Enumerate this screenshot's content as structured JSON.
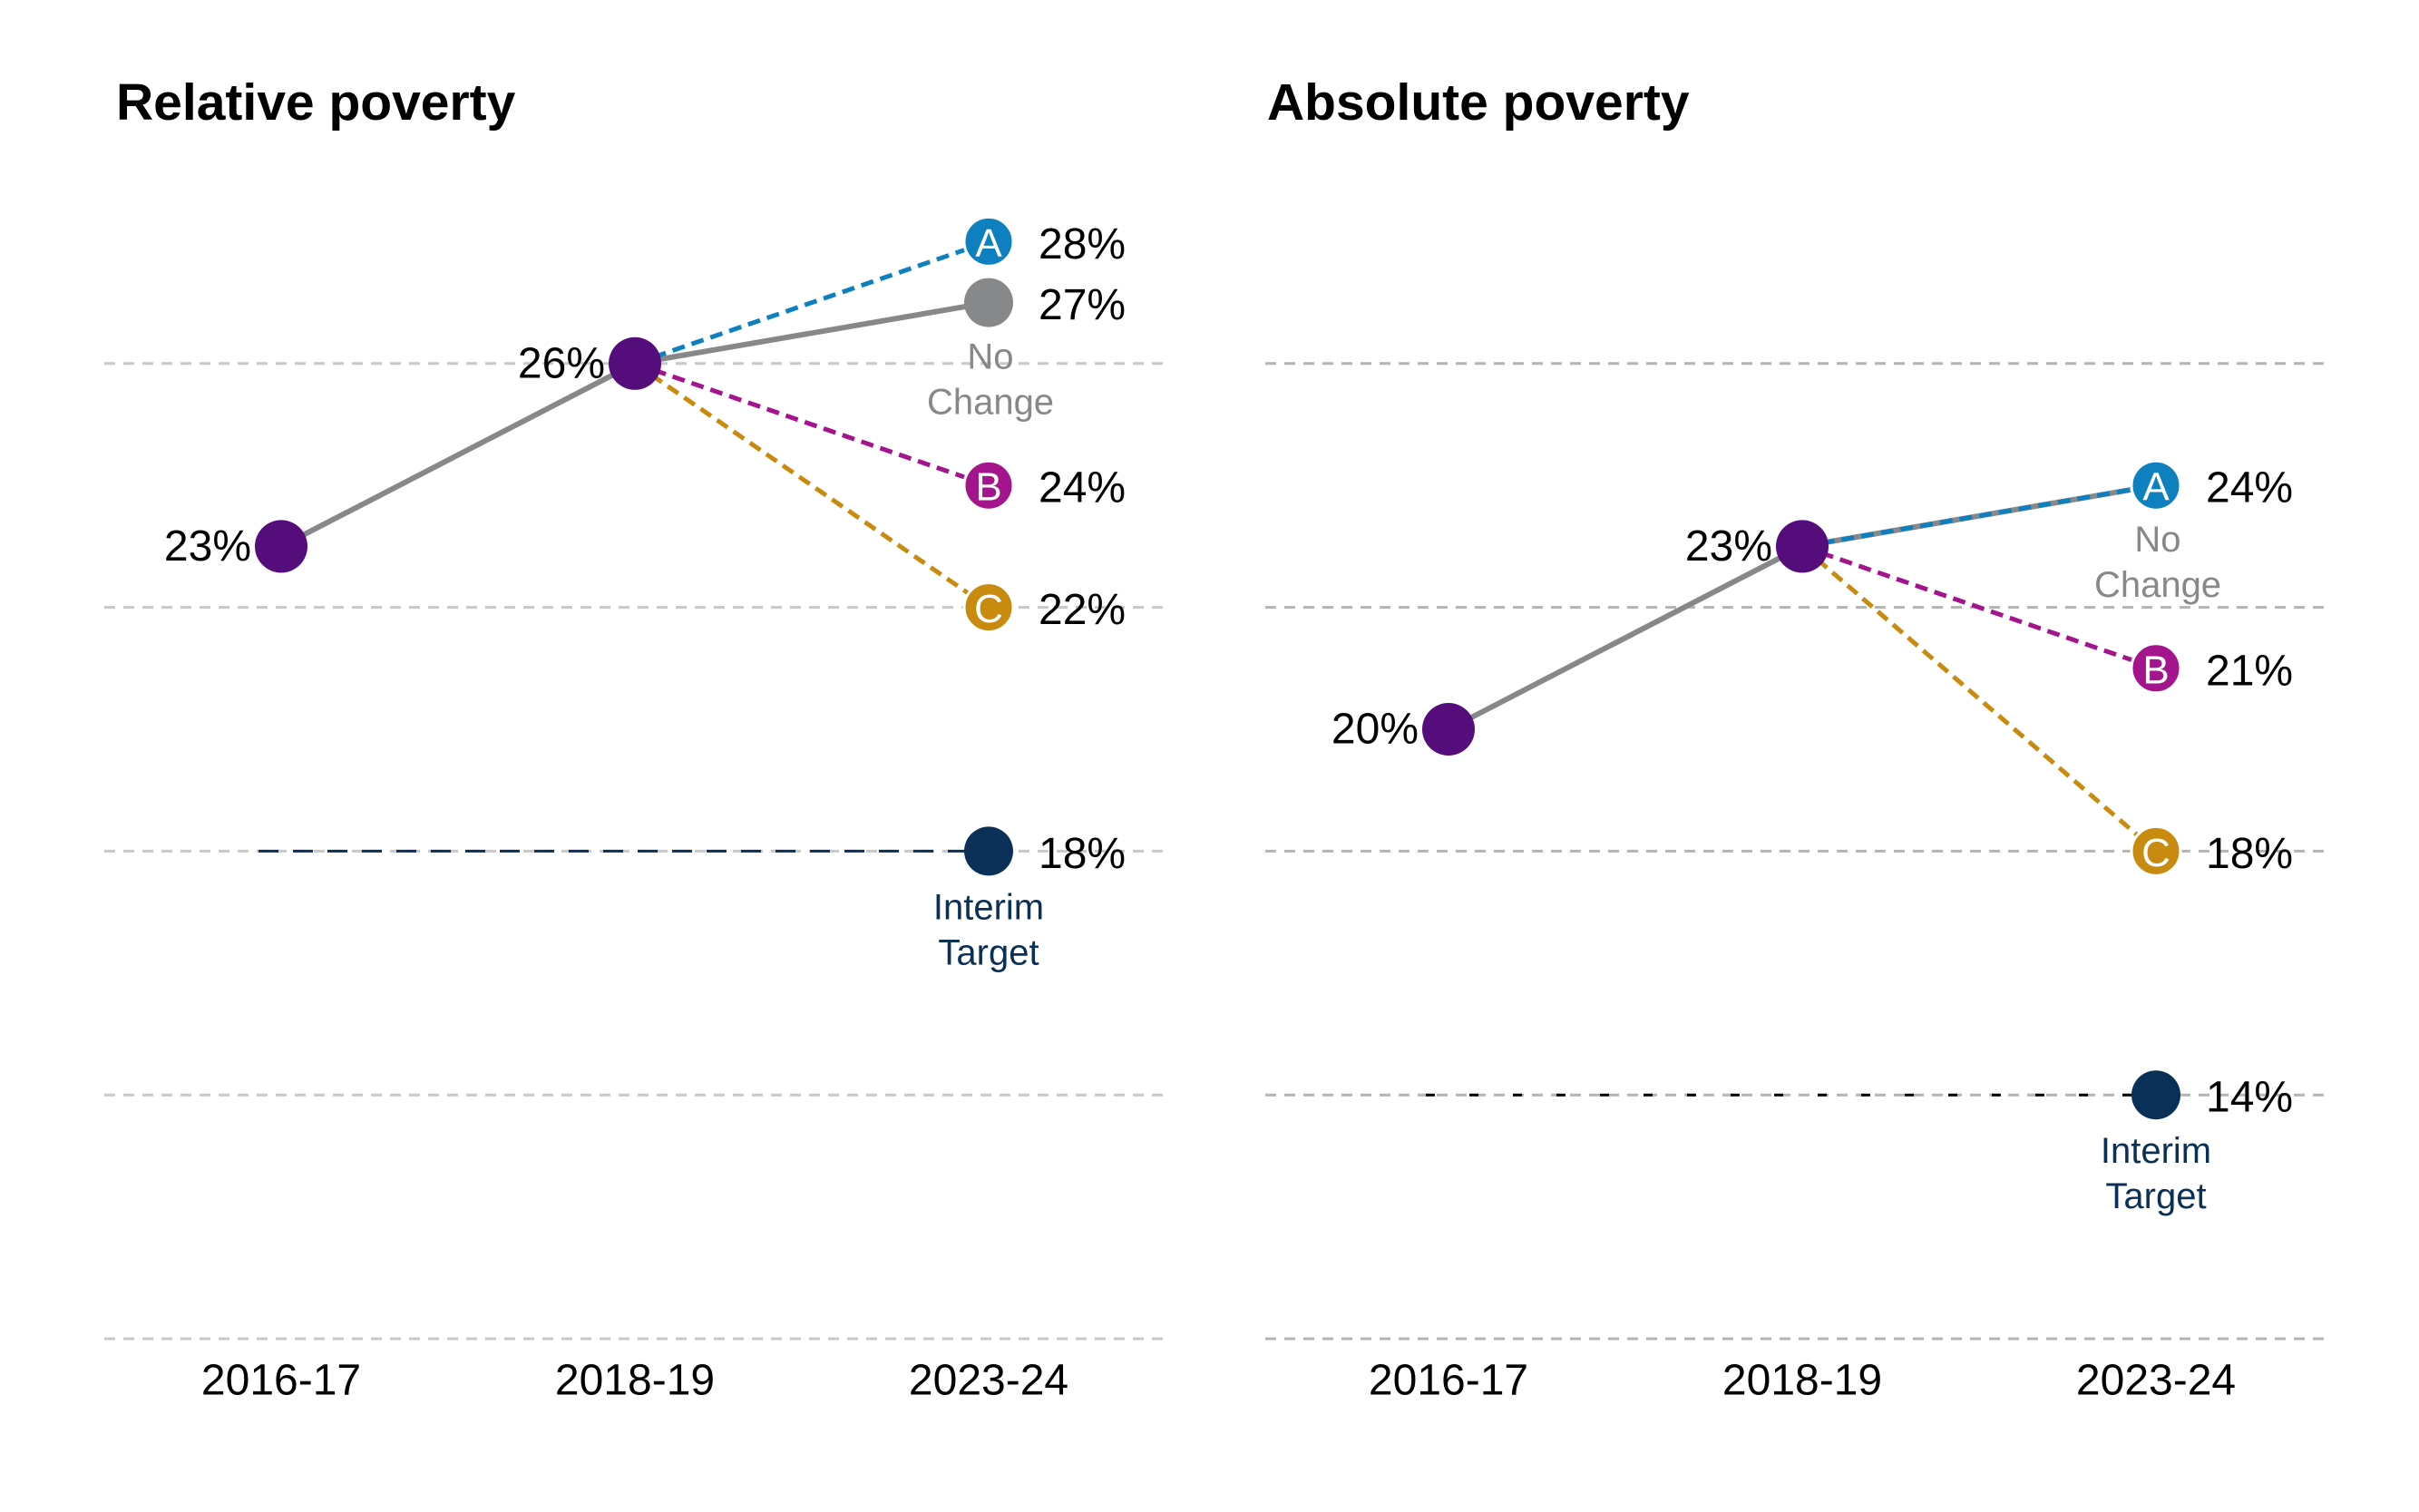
{
  "colors": {
    "actual": "#540d7a",
    "no_change": "#87888a",
    "scenario_a": "#0e7fbf",
    "scenario_b": "#a4148c",
    "scenario_c": "#c98a10",
    "target": "#0b3058",
    "grid": "#c8c8c8"
  },
  "chart_data": [
    {
      "type": "line",
      "title": "Relative poverty",
      "categories": [
        "2016-17",
        "2018-19",
        "2023-24"
      ],
      "ylim": [
        10,
        30
      ],
      "gridlines": [
        10,
        14,
        18,
        22,
        26
      ],
      "grid": true,
      "actual": {
        "points": [
          {
            "x": "2016-17",
            "y": 23,
            "label": "23%"
          },
          {
            "x": "2018-19",
            "y": 26,
            "label": "26%"
          }
        ]
      },
      "scenarios": [
        {
          "key": "no_change",
          "marker": "",
          "label": "27%",
          "from": 26,
          "y": 27,
          "note": [
            "No",
            "Change"
          ]
        },
        {
          "key": "scenario_a",
          "marker": "A",
          "label": "28%",
          "from": 26,
          "y": 28
        },
        {
          "key": "scenario_b",
          "marker": "B",
          "label": "24%",
          "from": 26,
          "y": 24
        },
        {
          "key": "scenario_c",
          "marker": "C",
          "label": "22%",
          "from": 26,
          "y": 22
        }
      ],
      "target": {
        "y": 18,
        "label": "18%",
        "note": [
          "Interim",
          "Target"
        ]
      }
    },
    {
      "type": "line",
      "title": "Absolute poverty",
      "categories": [
        "2016-17",
        "2018-19",
        "2023-24"
      ],
      "ylim": [
        10,
        30
      ],
      "gridlines": [
        10,
        14,
        18,
        22,
        26
      ],
      "grid": true,
      "actual": {
        "points": [
          {
            "x": "2016-17",
            "y": 20,
            "label": "20%"
          },
          {
            "x": "2018-19",
            "y": 23,
            "label": "23%"
          }
        ]
      },
      "scenarios": [
        {
          "key": "no_change",
          "marker": "",
          "label": "",
          "from": 23,
          "y": 24,
          "note": [
            "No",
            "Change"
          ]
        },
        {
          "key": "scenario_a",
          "marker": "A",
          "label": "24%",
          "from": 23,
          "y": 24
        },
        {
          "key": "scenario_b",
          "marker": "B",
          "label": "21%",
          "from": 23,
          "y": 21
        },
        {
          "key": "scenario_c",
          "marker": "C",
          "label": "18%",
          "from": 23,
          "y": 18
        }
      ],
      "target": {
        "y": 14,
        "label": "14%",
        "note": [
          "Interim",
          "Target"
        ]
      }
    }
  ]
}
